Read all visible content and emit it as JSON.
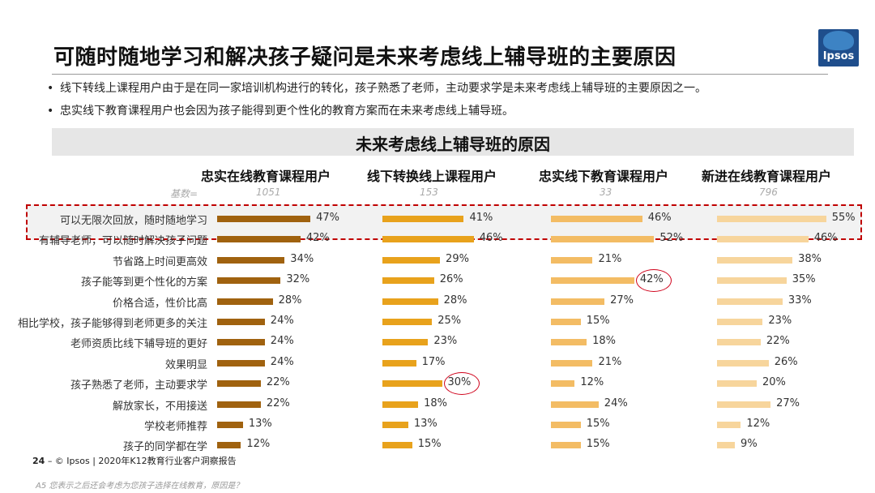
{
  "title": "可随时随地学习和解决孩子疑问是未来考虑线上辅导班的主要原因",
  "logo_text": "Ipsos",
  "bullets": [
    "线下转线上课程用户由于是在同一家培训机构进行的转化，孩子熟悉了老师，主动要求学是未来考虑线上辅导班的主要原因之一。",
    "忠实线下教育课程用户也会因为孩子能得到更个性化的教育方案而在未来考虑线上辅导班。"
  ],
  "bullet_symbol": "•",
  "footer": {
    "page": "24",
    "text": "–  © Ipsos | 2020年K12教育行业客户洞察报告",
    "question": "A5 您表示之后还会考虑为您孩子选择在线教育，原因是？"
  },
  "colors": {
    "col1": "#a0620f",
    "col2": "#e8a21c",
    "col3": "#f3bc64",
    "col4": "#f7d59c",
    "highlight_border": "#c00000",
    "circle": "#d0021b"
  },
  "chart_data": {
    "type": "bar",
    "title": "未来考虑线上辅导班的原因",
    "base_label": "基数=",
    "categories": [
      "可以无限次回放，随时随地学习",
      "有辅导老师，可以随时解决孩子问题",
      "节省路上时间更高效",
      "孩子能等到更个性化的方案",
      "价格合适，性价比高",
      "相比学校，孩子能够得到老师更多的关注",
      "老师资质比线下辅导班的更好",
      "效果明显",
      "孩子熟悉了老师，主动要求学",
      "解放家长，不用接送",
      "学校老师推荐",
      "孩子的同学都在学"
    ],
    "series": [
      {
        "name": "忠实在线教育课程用户",
        "base": "1051",
        "values": [
          47,
          42,
          34,
          32,
          28,
          24,
          24,
          24,
          22,
          22,
          13,
          12
        ]
      },
      {
        "name": "线下转换线上课程用户",
        "base": "153",
        "values": [
          41,
          46,
          29,
          26,
          28,
          25,
          23,
          17,
          30,
          18,
          13,
          15
        ]
      },
      {
        "name": "忠实线下教育课程用户",
        "base": "33",
        "values": [
          46,
          52,
          21,
          42,
          27,
          15,
          18,
          21,
          12,
          24,
          15,
          15
        ]
      },
      {
        "name": "新进在线教育课程用户",
        "base": "796",
        "values": [
          55,
          46,
          38,
          35,
          33,
          23,
          22,
          26,
          20,
          27,
          12,
          9
        ]
      }
    ],
    "value_suffix": "%",
    "highlighted_rows": [
      0,
      1
    ],
    "circled_cells": [
      {
        "series": 1,
        "category": 8
      },
      {
        "series": 2,
        "category": 3
      }
    ]
  }
}
